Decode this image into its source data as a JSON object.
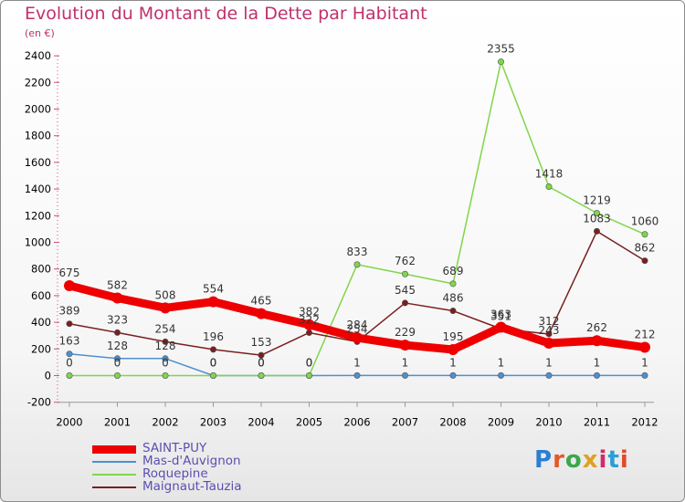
{
  "header": {
    "title": "Evolution du Montant de la Dette par Habitant",
    "unit": "(en €)"
  },
  "logo": {
    "text": "Proxiti"
  },
  "colors": {
    "title": "#c0306c",
    "legend_text": "#5b4fb0"
  },
  "chart_data": {
    "type": "line",
    "title": "Evolution du Montant de la Dette par Habitant",
    "subtitle": "(en €)",
    "xlabel": "",
    "ylabel": "",
    "x": [
      "2000",
      "2001",
      "2002",
      "2003",
      "2004",
      "2005",
      "2006",
      "2007",
      "2008",
      "2009",
      "2010",
      "2011",
      "2012"
    ],
    "ylim": [
      -200,
      2400
    ],
    "yticks": [
      -200,
      0,
      200,
      400,
      600,
      800,
      1000,
      1200,
      1400,
      1600,
      1800,
      2000,
      2200,
      2400
    ],
    "grid": false,
    "legend_position": "bottom-left",
    "series": [
      {
        "name": "SAINT-PUY",
        "color": "#ee0000",
        "emphasis": true,
        "values": [
          675,
          582,
          508,
          554,
          465,
          382,
          284,
          229,
          195,
          363,
          243,
          262,
          212
        ],
        "labels": [
          "675",
          "582",
          "508",
          "554",
          "465",
          "382",
          "284",
          "229",
          "195",
          "363",
          "243",
          "262",
          "212"
        ]
      },
      {
        "name": "Mas-d'Auvignon",
        "color": "#4e8fcf",
        "values": [
          163,
          128,
          128,
          0,
          0,
          0,
          1,
          1,
          1,
          1,
          1,
          1,
          1
        ],
        "labels": [
          "163",
          "128",
          "128",
          "0",
          "0",
          "0",
          "1",
          "1",
          "1",
          "1",
          "1",
          "1",
          "1"
        ]
      },
      {
        "name": "Roquepine",
        "color": "#7fd64a",
        "values": [
          0,
          0,
          0,
          0,
          0,
          0,
          833,
          762,
          689,
          2355,
          1418,
          1219,
          1060
        ],
        "labels": [
          "0",
          "0",
          "0",
          "0",
          "0",
          "0",
          "833",
          "762",
          "689",
          "2355",
          "1418",
          "1219",
          "1060"
        ]
      },
      {
        "name": "Maignaut-Tauzia",
        "color": "#7a1f1f",
        "values": [
          389,
          323,
          254,
          196,
          153,
          322,
          254,
          545,
          486,
          351,
          312,
          1083,
          862
        ],
        "labels": [
          "389",
          "323",
          "254",
          "196",
          "153",
          "322",
          "254",
          "545",
          "486",
          "351",
          "312",
          "1083",
          "862"
        ]
      }
    ]
  }
}
